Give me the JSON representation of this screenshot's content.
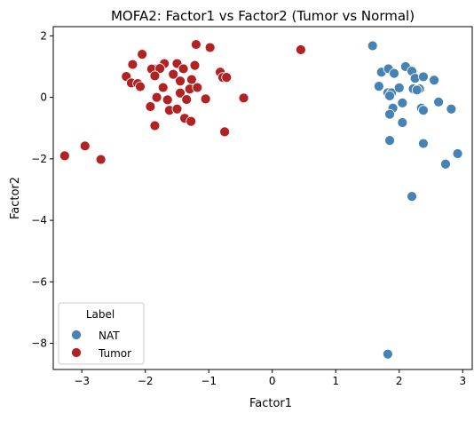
{
  "chart_data": {
    "type": "scatter",
    "title": "MOFA2: Factor1 vs Factor2 (Tumor vs Normal)",
    "xlabel": "Factor1",
    "ylabel": "Factor2",
    "xlim": [
      -3.45,
      3.15
    ],
    "ylim": [
      -8.85,
      2.3
    ],
    "xticks": [
      -3,
      -2,
      -1,
      0,
      1,
      2,
      3
    ],
    "yticks": [
      2,
      0,
      -2,
      -4,
      -6,
      -8
    ],
    "grid": false,
    "legend": {
      "title": "Label",
      "position": "lower-left"
    },
    "series": [
      {
        "name": "NAT",
        "color": "#4682b4",
        "points": [
          [
            1.58,
            1.68
          ],
          [
            1.72,
            0.82
          ],
          [
            1.83,
            0.93
          ],
          [
            1.92,
            0.78
          ],
          [
            2.1,
            1.0
          ],
          [
            2.2,
            0.85
          ],
          [
            2.25,
            0.62
          ],
          [
            2.38,
            0.67
          ],
          [
            2.55,
            0.56
          ],
          [
            1.68,
            0.36
          ],
          [
            1.82,
            0.15
          ],
          [
            1.88,
            0.15
          ],
          [
            1.85,
            0.05
          ],
          [
            2.0,
            0.31
          ],
          [
            2.22,
            0.28
          ],
          [
            2.32,
            0.28
          ],
          [
            2.28,
            0.24
          ],
          [
            2.05,
            -0.18
          ],
          [
            2.62,
            -0.15
          ],
          [
            1.9,
            -0.35
          ],
          [
            1.85,
            -0.55
          ],
          [
            2.05,
            -0.82
          ],
          [
            2.35,
            -0.35
          ],
          [
            2.38,
            -0.42
          ],
          [
            2.82,
            -0.38
          ],
          [
            1.85,
            -1.4
          ],
          [
            2.38,
            -1.5
          ],
          [
            2.92,
            -1.83
          ],
          [
            2.73,
            -2.17
          ],
          [
            2.2,
            -3.22
          ],
          [
            1.82,
            -8.35
          ]
        ]
      },
      {
        "name": "Tumor",
        "color": "#b22222",
        "points": [
          [
            -2.05,
            1.4
          ],
          [
            -1.2,
            1.72
          ],
          [
            -0.98,
            1.62
          ],
          [
            0.45,
            1.55
          ],
          [
            -2.2,
            1.07
          ],
          [
            -1.7,
            1.1
          ],
          [
            -1.5,
            1.1
          ],
          [
            -1.85,
            0.92
          ],
          [
            -1.9,
            0.92
          ],
          [
            -1.4,
            0.93
          ],
          [
            -1.22,
            1.04
          ],
          [
            -1.77,
            0.94
          ],
          [
            -0.82,
            0.82
          ],
          [
            -0.78,
            0.65
          ],
          [
            -0.72,
            0.65
          ],
          [
            -2.3,
            0.68
          ],
          [
            -2.22,
            0.47
          ],
          [
            -2.12,
            0.45
          ],
          [
            -2.08,
            0.35
          ],
          [
            -1.72,
            0.32
          ],
          [
            -1.27,
            0.58
          ],
          [
            -1.45,
            0.53
          ],
          [
            -1.56,
            0.75
          ],
          [
            -1.3,
            0.27
          ],
          [
            -1.18,
            0.32
          ],
          [
            -1.45,
            0.14
          ],
          [
            -1.85,
            0.7
          ],
          [
            -1.82,
            0.0
          ],
          [
            -1.35,
            -0.07
          ],
          [
            -1.65,
            -0.08
          ],
          [
            -0.45,
            -0.02
          ],
          [
            -1.05,
            -0.05
          ],
          [
            -1.92,
            -0.3
          ],
          [
            -1.62,
            -0.42
          ],
          [
            -1.5,
            -0.38
          ],
          [
            -1.38,
            -0.68
          ],
          [
            -1.28,
            -0.78
          ],
          [
            -1.85,
            -0.92
          ],
          [
            -0.75,
            -1.12
          ],
          [
            -3.27,
            -1.9
          ],
          [
            -2.95,
            -1.58
          ],
          [
            -2.7,
            -2.02
          ]
        ]
      }
    ]
  }
}
